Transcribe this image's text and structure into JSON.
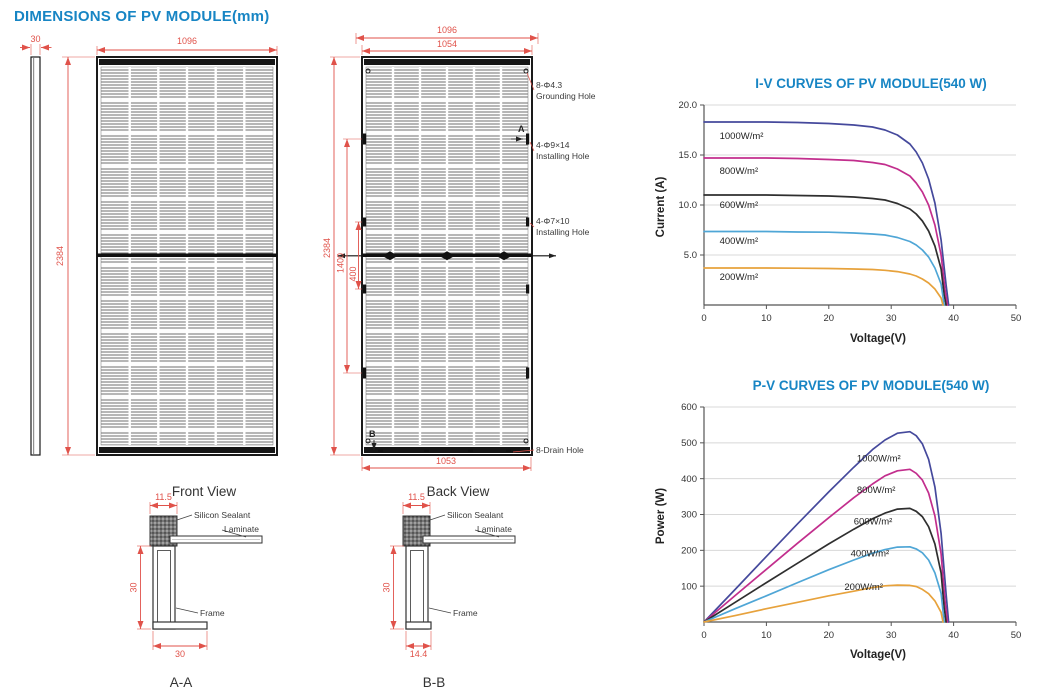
{
  "page": {
    "title": "DIMENSIONS OF PV MODULE(mm)",
    "accent_color": "#1785c4",
    "dim_color": "#e0524a"
  },
  "drawings": {
    "side": {
      "thickness": "30"
    },
    "front": {
      "width": "1096",
      "height": "2384",
      "caption": "Front View"
    },
    "back": {
      "width_outer": "1096",
      "width_inner": "1054",
      "height": "2384",
      "install_span": "1400",
      "install_span_inner": "400",
      "bottom_width": "1053",
      "caption": "Back View",
      "marker_a": "A",
      "marker_b": "B",
      "ann": {
        "grounding_line1": "8-Φ4.3",
        "grounding_line2": "Grounding Hole",
        "install9_line1": "4-Φ9×14",
        "install9_line2": "Installing Hole",
        "install7_line1": "4-Φ7×10",
        "install7_line2": "Installing Hole",
        "drain": "8-Drain Hole"
      }
    },
    "section_a": {
      "caption": "A-A",
      "dim_top": "11.5",
      "dim_side": "30",
      "dim_bottom": "30",
      "sealant": "Silicon Sealant",
      "laminate": "Laminate",
      "frame": "Frame"
    },
    "section_b": {
      "caption": "B-B",
      "dim_top": "11.5",
      "dim_side": "30",
      "dim_bottom": "14.4",
      "sealant": "Silicon Sealant",
      "laminate": "Laminate",
      "frame": "Frame"
    }
  },
  "chart_data": [
    {
      "id": "iv",
      "type": "line",
      "title": "I-V CURVES OF PV MODULE(540 W)",
      "xlabel": "Voltage(V)",
      "ylabel": "Current (A)",
      "xlim": [
        0,
        50
      ],
      "ylim": [
        0,
        20
      ],
      "xticks": [
        0,
        10,
        20,
        30,
        40,
        50
      ],
      "yticks": [
        5,
        10,
        15,
        20
      ],
      "ytick_labels": [
        "5.0",
        "10.0",
        "15.0",
        "20.0"
      ],
      "grid": "horizontal",
      "legend_position": "inline-labels",
      "series": [
        {
          "name": "1000W/m²",
          "color": "#45499c",
          "label_at": [
            2.5,
            16.6
          ],
          "points": [
            [
              0,
              18.3
            ],
            [
              5,
              18.3
            ],
            [
              10,
              18.3
            ],
            [
              15,
              18.25
            ],
            [
              20,
              18.15
            ],
            [
              24,
              18.0
            ],
            [
              27,
              17.8
            ],
            [
              29,
              17.5
            ],
            [
              31,
              17.0
            ],
            [
              33,
              16.1
            ],
            [
              34,
              15.3
            ],
            [
              35,
              14.2
            ],
            [
              36,
              12.6
            ],
            [
              37,
              10.2
            ],
            [
              38,
              6.5
            ],
            [
              38.8,
              2.0
            ],
            [
              39.2,
              0
            ]
          ]
        },
        {
          "name": "800W/m²",
          "color": "#c22e8d",
          "label_at": [
            2.5,
            13.1
          ],
          "points": [
            [
              0,
              14.7
            ],
            [
              5,
              14.7
            ],
            [
              10,
              14.7
            ],
            [
              15,
              14.65
            ],
            [
              20,
              14.55
            ],
            [
              24,
              14.45
            ],
            [
              27,
              14.25
            ],
            [
              29,
              14.05
            ],
            [
              31,
              13.6
            ],
            [
              33,
              12.9
            ],
            [
              34,
              12.2
            ],
            [
              35,
              11.3
            ],
            [
              36,
              10.0
            ],
            [
              37,
              8.0
            ],
            [
              38,
              5.0
            ],
            [
              38.6,
              1.6
            ],
            [
              39.0,
              0
            ]
          ]
        },
        {
          "name": "600W/m²",
          "color": "#2f2f2f",
          "label_at": [
            2.5,
            9.7
          ],
          "points": [
            [
              0,
              11.0
            ],
            [
              5,
              11.0
            ],
            [
              10,
              11.0
            ],
            [
              15,
              10.95
            ],
            [
              20,
              10.9
            ],
            [
              24,
              10.8
            ],
            [
              27,
              10.65
            ],
            [
              29,
              10.5
            ],
            [
              31,
              10.15
            ],
            [
              33,
              9.6
            ],
            [
              34,
              9.1
            ],
            [
              35,
              8.4
            ],
            [
              36,
              7.4
            ],
            [
              37,
              5.9
            ],
            [
              38,
              3.6
            ],
            [
              38.5,
              1.0
            ],
            [
              38.8,
              0
            ]
          ]
        },
        {
          "name": "400W/m²",
          "color": "#4fa6d6",
          "label_at": [
            2.5,
            6.1
          ],
          "points": [
            [
              0,
              7.35
            ],
            [
              5,
              7.35
            ],
            [
              10,
              7.35
            ],
            [
              15,
              7.3
            ],
            [
              20,
              7.28
            ],
            [
              24,
              7.2
            ],
            [
              27,
              7.1
            ],
            [
              29,
              7.0
            ],
            [
              31,
              6.75
            ],
            [
              33,
              6.35
            ],
            [
              34,
              6.0
            ],
            [
              35,
              5.5
            ],
            [
              36,
              4.8
            ],
            [
              37,
              3.7
            ],
            [
              38,
              2.1
            ],
            [
              38.5,
              0
            ]
          ]
        },
        {
          "name": "200W/m²",
          "color": "#e7a23c",
          "label_at": [
            2.5,
            2.5
          ],
          "points": [
            [
              0,
              3.7
            ],
            [
              5,
              3.7
            ],
            [
              10,
              3.7
            ],
            [
              15,
              3.68
            ],
            [
              20,
              3.65
            ],
            [
              24,
              3.6
            ],
            [
              27,
              3.55
            ],
            [
              29,
              3.47
            ],
            [
              31,
              3.34
            ],
            [
              33,
              3.1
            ],
            [
              34,
              2.9
            ],
            [
              35,
              2.6
            ],
            [
              36,
              2.2
            ],
            [
              37,
              1.6
            ],
            [
              38,
              0.7
            ],
            [
              38.3,
              0
            ]
          ]
        }
      ]
    },
    {
      "id": "pv",
      "type": "line",
      "title": "P-V CURVES OF PV MODULE(540 W)",
      "xlabel": "Voltage(V)",
      "ylabel": "Power (W)",
      "xlim": [
        0,
        50
      ],
      "ylim": [
        0,
        600
      ],
      "xticks": [
        0,
        10,
        20,
        30,
        40,
        50
      ],
      "yticks": [
        100,
        200,
        300,
        400,
        500,
        600
      ],
      "ytick_labels": [
        "100",
        "200",
        "300",
        "400",
        "500",
        "600"
      ],
      "grid": "horizontal",
      "legend_position": "inline-labels",
      "series": [
        {
          "name": "1000W/m²",
          "color": "#45499c",
          "label_at": [
            24.5,
            448
          ],
          "points": [
            [
              0,
              0
            ],
            [
              5,
              91
            ],
            [
              10,
              183
            ],
            [
              15,
              274
            ],
            [
              20,
              363
            ],
            [
              24,
              432
            ],
            [
              27,
              481
            ],
            [
              29,
              508
            ],
            [
              31,
              527
            ],
            [
              33,
              531
            ],
            [
              34,
              520
            ],
            [
              35,
              497
            ],
            [
              36,
              454
            ],
            [
              37,
              377
            ],
            [
              38,
              247
            ],
            [
              38.8,
              78
            ],
            [
              39.2,
              0
            ]
          ]
        },
        {
          "name": "800W/m²",
          "color": "#c22e8d",
          "label_at": [
            24.5,
            360
          ],
          "points": [
            [
              0,
              0
            ],
            [
              5,
              74
            ],
            [
              10,
              147
            ],
            [
              15,
              220
            ],
            [
              20,
              291
            ],
            [
              24,
              347
            ],
            [
              27,
              385
            ],
            [
              29,
              408
            ],
            [
              31,
              422
            ],
            [
              33,
              426
            ],
            [
              34,
              415
            ],
            [
              35,
              396
            ],
            [
              36,
              360
            ],
            [
              37,
              296
            ],
            [
              38,
              190
            ],
            [
              38.6,
              62
            ],
            [
              39.0,
              0
            ]
          ]
        },
        {
          "name": "600W/m²",
          "color": "#2f2f2f",
          "label_at": [
            24,
            272
          ],
          "points": [
            [
              0,
              0
            ],
            [
              5,
              55
            ],
            [
              10,
              110
            ],
            [
              15,
              164
            ],
            [
              20,
              218
            ],
            [
              24,
              259
            ],
            [
              27,
              288
            ],
            [
              29,
              304
            ],
            [
              31,
              315
            ],
            [
              33,
              317
            ],
            [
              34,
              309
            ],
            [
              35,
              294
            ],
            [
              36,
              266
            ],
            [
              37,
              218
            ],
            [
              38,
              137
            ],
            [
              38.5,
              39
            ],
            [
              38.8,
              0
            ]
          ]
        },
        {
          "name": "400W/m²",
          "color": "#4fa6d6",
          "label_at": [
            23.5,
            183
          ],
          "points": [
            [
              0,
              0
            ],
            [
              5,
              37
            ],
            [
              10,
              73
            ],
            [
              15,
              110
            ],
            [
              20,
              146
            ],
            [
              24,
              173
            ],
            [
              27,
              192
            ],
            [
              29,
              202
            ],
            [
              31,
              209
            ],
            [
              33,
              210
            ],
            [
              34,
              204
            ],
            [
              35,
              193
            ],
            [
              36,
              173
            ],
            [
              37,
              137
            ],
            [
              38,
              80
            ],
            [
              38.5,
              0
            ]
          ]
        },
        {
          "name": "200W/m²",
          "color": "#e7a23c",
          "label_at": [
            22.5,
            90
          ],
          "points": [
            [
              0,
              0
            ],
            [
              5,
              18
            ],
            [
              10,
              37
            ],
            [
              15,
              55
            ],
            [
              20,
              73
            ],
            [
              24,
              86
            ],
            [
              27,
              96
            ],
            [
              29,
              101
            ],
            [
              31,
              103
            ],
            [
              33,
              102
            ],
            [
              34,
              99
            ],
            [
              35,
              91
            ],
            [
              36,
              79
            ],
            [
              37,
              59
            ],
            [
              38,
              27
            ],
            [
              38.3,
              0
            ]
          ]
        }
      ]
    }
  ]
}
